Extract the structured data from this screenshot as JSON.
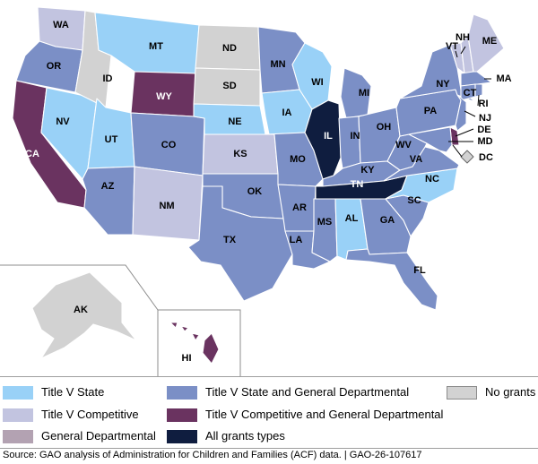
{
  "colors": {
    "title_v_state": "#99d1f7",
    "title_v_competitive": "#c2c4e0",
    "general_departmental": "#b3a2b2",
    "title_v_state_and_general": "#7b8fc6",
    "title_v_competitive_and_general": "#6a3360",
    "all_grants_types": "#0f1d3f",
    "no_grants": "#d2d2d2"
  },
  "legend": [
    {
      "key": "title_v_state",
      "label": "Title V State"
    },
    {
      "key": "title_v_competitive",
      "label": "Title V Competitive"
    },
    {
      "key": "general_departmental",
      "label": "General Departmental"
    },
    {
      "key": "title_v_state_and_general",
      "label": "Title V State and General Departmental"
    },
    {
      "key": "title_v_competitive_and_general",
      "label": "Title V Competitive and General Departmental"
    },
    {
      "key": "all_grants_types",
      "label": "All grants types"
    },
    {
      "key": "no_grants",
      "label": "No grants"
    }
  ],
  "states": [
    {
      "abbr": "WA",
      "category": "title_v_competitive"
    },
    {
      "abbr": "OR",
      "category": "title_v_state_and_general"
    },
    {
      "abbr": "CA",
      "category": "title_v_competitive_and_general"
    },
    {
      "abbr": "NV",
      "category": "title_v_state"
    },
    {
      "abbr": "ID",
      "category": "no_grants"
    },
    {
      "abbr": "MT",
      "category": "title_v_state"
    },
    {
      "abbr": "WY",
      "category": "title_v_competitive_and_general"
    },
    {
      "abbr": "UT",
      "category": "title_v_state"
    },
    {
      "abbr": "AZ",
      "category": "title_v_state_and_general"
    },
    {
      "abbr": "CO",
      "category": "title_v_state_and_general"
    },
    {
      "abbr": "NM",
      "category": "title_v_competitive"
    },
    {
      "abbr": "ND",
      "category": "no_grants"
    },
    {
      "abbr": "SD",
      "category": "no_grants"
    },
    {
      "abbr": "NE",
      "category": "title_v_state"
    },
    {
      "abbr": "KS",
      "category": "title_v_competitive"
    },
    {
      "abbr": "OK",
      "category": "title_v_state_and_general"
    },
    {
      "abbr": "TX",
      "category": "title_v_state_and_general"
    },
    {
      "abbr": "MN",
      "category": "title_v_state_and_general"
    },
    {
      "abbr": "IA",
      "category": "title_v_state"
    },
    {
      "abbr": "MO",
      "category": "title_v_state_and_general"
    },
    {
      "abbr": "AR",
      "category": "title_v_state_and_general"
    },
    {
      "abbr": "LA",
      "category": "title_v_state_and_general"
    },
    {
      "abbr": "WI",
      "category": "title_v_state"
    },
    {
      "abbr": "IL",
      "category": "all_grants_types"
    },
    {
      "abbr": "MI",
      "category": "title_v_state_and_general"
    },
    {
      "abbr": "IN",
      "category": "title_v_state_and_general"
    },
    {
      "abbr": "OH",
      "category": "title_v_state_and_general"
    },
    {
      "abbr": "KY",
      "category": "title_v_state_and_general"
    },
    {
      "abbr": "TN",
      "category": "all_grants_types"
    },
    {
      "abbr": "MS",
      "category": "title_v_state_and_general"
    },
    {
      "abbr": "AL",
      "category": "title_v_state"
    },
    {
      "abbr": "GA",
      "category": "title_v_state_and_general"
    },
    {
      "abbr": "FL",
      "category": "title_v_state_and_general"
    },
    {
      "abbr": "SC",
      "category": "title_v_state_and_general"
    },
    {
      "abbr": "NC",
      "category": "title_v_state"
    },
    {
      "abbr": "VA",
      "category": "title_v_state_and_general"
    },
    {
      "abbr": "WV",
      "category": "title_v_state_and_general"
    },
    {
      "abbr": "PA",
      "category": "title_v_state_and_general"
    },
    {
      "abbr": "NY",
      "category": "title_v_state_and_general"
    },
    {
      "abbr": "VT",
      "category": "title_v_competitive"
    },
    {
      "abbr": "NH",
      "category": "title_v_competitive"
    },
    {
      "abbr": "ME",
      "category": "title_v_competitive"
    },
    {
      "abbr": "MA",
      "category": "title_v_state_and_general"
    },
    {
      "abbr": "CT",
      "category": "title_v_state_and_general"
    },
    {
      "abbr": "RI",
      "category": "title_v_state_and_general"
    },
    {
      "abbr": "NJ",
      "category": "title_v_state_and_general"
    },
    {
      "abbr": "DE",
      "category": "title_v_competitive_and_general"
    },
    {
      "abbr": "MD",
      "category": "title_v_state_and_general"
    },
    {
      "abbr": "DC",
      "category": "no_grants"
    },
    {
      "abbr": "AK",
      "category": "no_grants"
    },
    {
      "abbr": "HI",
      "category": "title_v_competitive_and_general"
    }
  ],
  "source": "Source: GAO analysis of Administration for Children and Families (ACF) data.  |  GAO-26-107617"
}
